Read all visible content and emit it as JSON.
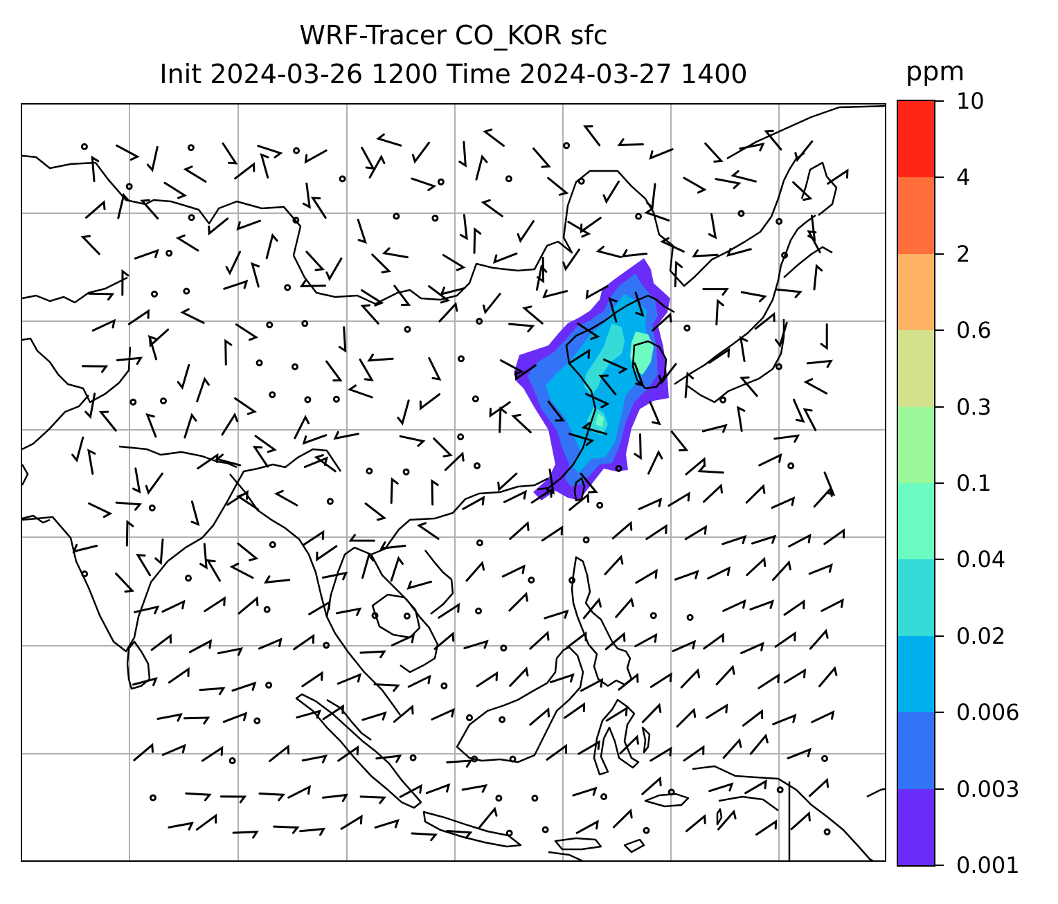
{
  "title": {
    "line1": "WRF-Tracer CO_KOR sfc",
    "line2": "Init 2024-03-26 1200 Time 2024-03-27 1400"
  },
  "colorbar": {
    "unit": "ppm",
    "levels": [
      "0.001",
      "0.003",
      "0.006",
      "0.02",
      "0.04",
      "0.1",
      "0.3",
      "0.6",
      "2",
      "4",
      "10"
    ],
    "colors": [
      "#6a2cf7",
      "#3274f5",
      "#00b0ec",
      "#35dcd7",
      "#6cfbc1",
      "#9af89a",
      "#d3e18c",
      "#fdb264",
      "#ff6f3c",
      "#ff2617"
    ]
  },
  "map": {
    "grid_color": "#b0b0b0",
    "coastline_color": "#000000",
    "wind_barbs": "black"
  }
}
